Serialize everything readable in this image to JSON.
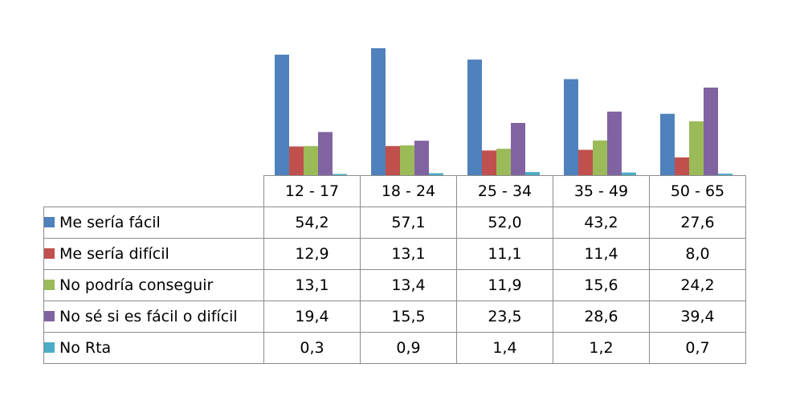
{
  "chart_data": {
    "type": "bar",
    "categories": [
      "12 - 17",
      "18 - 24",
      "25 - 34",
      "35 - 49",
      "50 - 65"
    ],
    "series": [
      {
        "name": "Me sería fácil",
        "color": "#4f81bd",
        "values": [
          54.2,
          57.1,
          52.0,
          43.2,
          27.6
        ],
        "labels": [
          "54,2",
          "57,1",
          "52,0",
          "43,2",
          "27,6"
        ]
      },
      {
        "name": "Me sería difícil",
        "color": "#c0504d",
        "values": [
          12.9,
          13.1,
          11.1,
          11.4,
          8.0
        ],
        "labels": [
          "12,9",
          "13,1",
          "11,1",
          "11,4",
          "8,0"
        ]
      },
      {
        "name": "No podría conseguir",
        "color": "#9bbb59",
        "values": [
          13.1,
          13.4,
          11.9,
          15.6,
          24.2
        ],
        "labels": [
          "13,1",
          "13,4",
          "11,9",
          "15,6",
          "24,2"
        ]
      },
      {
        "name": "No sé si es fácil o difícil",
        "color": "#8064a2",
        "values": [
          19.4,
          15.5,
          23.5,
          28.6,
          39.4
        ],
        "labels": [
          "19,4",
          "15,5",
          "23,5",
          "28,6",
          "39,4"
        ]
      },
      {
        "name": "No Rta",
        "color": "#4bacc6",
        "values": [
          0.3,
          0.9,
          1.4,
          1.2,
          0.7
        ],
        "labels": [
          "0,3",
          "0,9",
          "1,4",
          "1,2",
          "0,7"
        ]
      }
    ],
    "ylim": [
      0,
      60
    ],
    "grid": false,
    "legend": "data table"
  }
}
